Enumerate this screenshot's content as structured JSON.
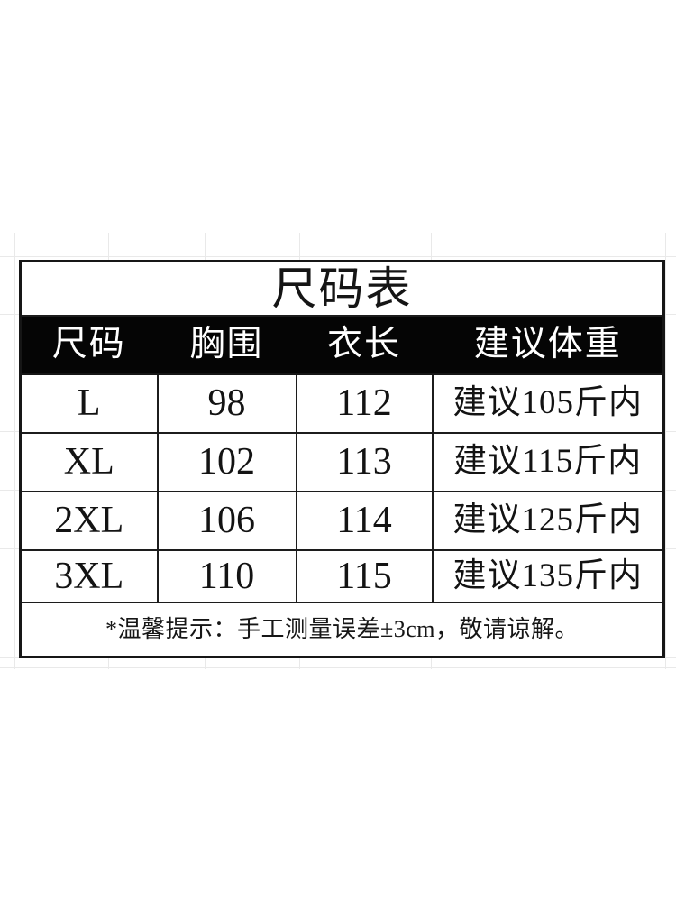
{
  "size_chart": {
    "title": "尺码表",
    "columns": [
      "尺码",
      "胸围",
      "衣长",
      "建议体重"
    ],
    "rows": [
      {
        "size": "L",
        "bust": "98",
        "length": "112",
        "weight": "建议105斤内"
      },
      {
        "size": "XL",
        "bust": "102",
        "length": "113",
        "weight": "建议115斤内"
      },
      {
        "size": "2XL",
        "bust": "106",
        "length": "114",
        "weight": "建议125斤内"
      },
      {
        "size": "3XL",
        "bust": "110",
        "length": "115",
        "weight": "建议135斤内"
      }
    ],
    "note": "*温馨提示：手工测量误差±3cm，敬请谅解。"
  },
  "colors": {
    "background": "#ffffff",
    "header_bg": "#050505",
    "header_text": "#ffffff",
    "body_text": "#131313",
    "table_border": "#1c1c1c",
    "gridline": "#e9e9e9"
  }
}
